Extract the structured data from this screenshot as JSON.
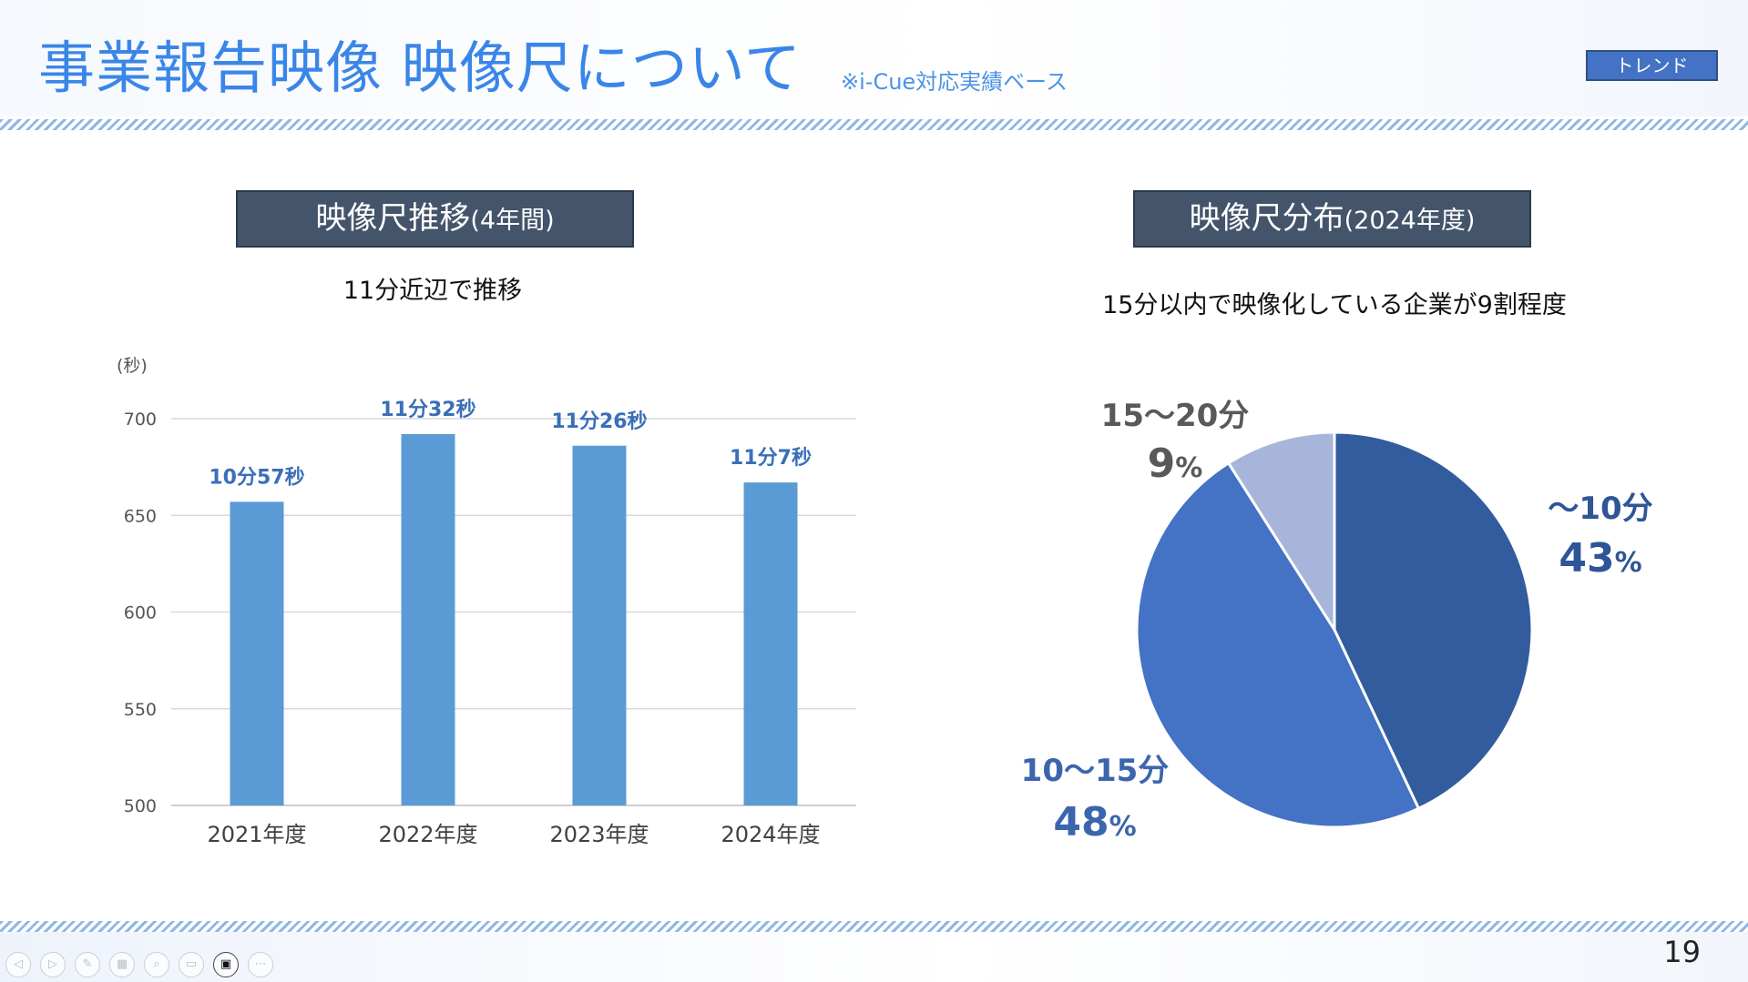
{
  "header": {
    "title": "事業報告映像 映像尺について",
    "subnote": "※i-Cue対応実績ベース",
    "tag": "トレンド"
  },
  "left": {
    "section_main": "映像尺推移",
    "section_sub": "(4年間)",
    "caption": "11分近辺で推移"
  },
  "right": {
    "section_main": "映像尺分布",
    "section_sub": "(2024年度)",
    "caption": "15分以内で映像化している企業が9割程度"
  },
  "chart_data": [
    {
      "type": "bar",
      "title": "映像尺推移(4年間)",
      "ylabel": "(秒)",
      "categories": [
        "2021年度",
        "2022年度",
        "2023年度",
        "2024年度"
      ],
      "values": [
        657,
        692,
        686,
        667
      ],
      "data_labels": [
        "10分57秒",
        "11分32秒",
        "11分26秒",
        "11分7秒"
      ],
      "ylim": [
        500,
        700
      ],
      "yticks": [
        500,
        550,
        600,
        650,
        700
      ],
      "grid": true,
      "bar_color": "#5b9bd5",
      "label_color": "#3a6fb8"
    },
    {
      "type": "pie",
      "title": "映像尺分布(2024年度)",
      "slices": [
        {
          "label": "～10分",
          "value": 43,
          "display": "43",
          "color": "#335c9e",
          "label_color": "#2f5597"
        },
        {
          "label": "10～15分",
          "value": 48,
          "display": "48",
          "color": "#4472c4",
          "label_color": "#3b66ad"
        },
        {
          "label": "15～20分",
          "value": 9,
          "display": "9",
          "color": "#a7b5db",
          "label_color": "#595959"
        }
      ],
      "percent_sign": "%"
    }
  ],
  "footer": {
    "page_number": "19",
    "controls": [
      {
        "icon": "previous-icon",
        "glyph": "◁"
      },
      {
        "icon": "next-icon",
        "glyph": "▷"
      },
      {
        "icon": "pen-icon",
        "glyph": "✎"
      },
      {
        "icon": "slides-icon",
        "glyph": "▦"
      },
      {
        "icon": "zoom-icon",
        "glyph": "⌕"
      },
      {
        "icon": "subtitles-icon",
        "glyph": "▭"
      },
      {
        "icon": "camera-icon",
        "glyph": "▣"
      },
      {
        "icon": "more-icon",
        "glyph": "⋯"
      }
    ]
  }
}
